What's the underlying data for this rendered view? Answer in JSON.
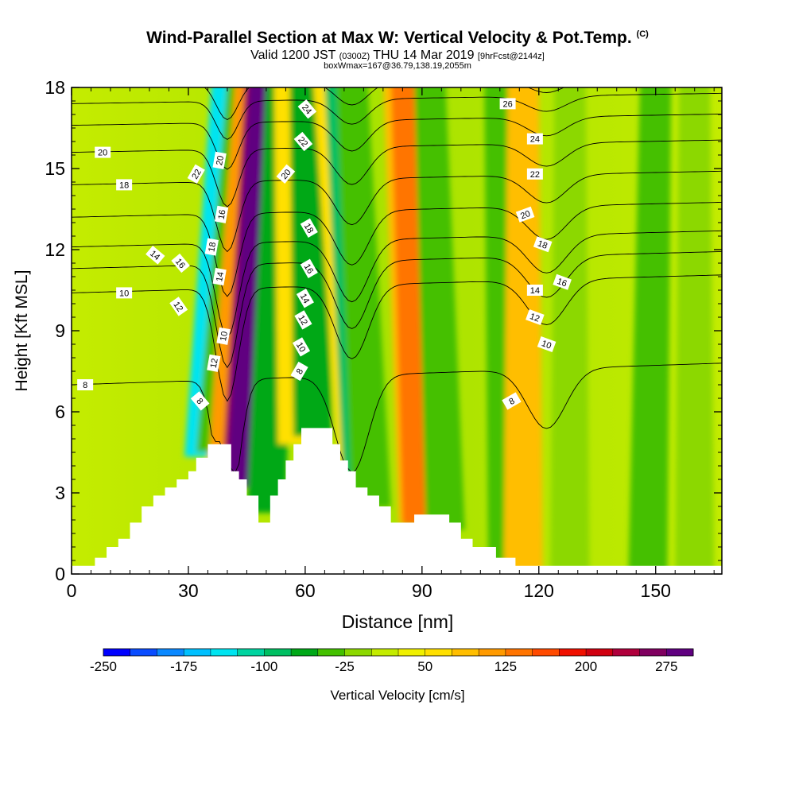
{
  "title": {
    "line1_main": "Wind-Parallel Section at Max W: Vertical Velocity & Pot.Temp.",
    "line1_copy": "(C)",
    "line2_a": "Valid 1200 JST",
    "line2_b": "(0300Z)",
    "line2_c": "THU 14 Mar 2019",
    "line2_d": "[9hrFcst@2144z]",
    "line3": "boxWmax=167@36.79,138.19,2055m"
  },
  "colors": {
    "scale": [
      "#0000ff",
      "#0a4cff",
      "#0a88ff",
      "#00c0ff",
      "#00e4f0",
      "#00d4a0",
      "#00bf62",
      "#00a818",
      "#44c000",
      "#8cd800",
      "#c4ec00",
      "#f0f000",
      "#ffe000",
      "#ffbe00",
      "#ff9a00",
      "#ff7400",
      "#ff4a00",
      "#f01000",
      "#d00010",
      "#b0003c",
      "#800060",
      "#600080"
    ],
    "terrain": "#ffffff",
    "contour": "#000000"
  },
  "chart_data": {
    "type": "heatmap",
    "xlabel": "Distance [nm]",
    "ylabel": "Height [Kft MSL]",
    "xlim": [
      0,
      167
    ],
    "ylim": [
      0,
      18
    ],
    "xticks": [
      "0",
      "30",
      "60",
      "90",
      "120",
      "150"
    ],
    "yticks": [
      "0",
      "3",
      "6",
      "9",
      "12",
      "15",
      "18"
    ],
    "colorbar": {
      "label": "Vertical Velocity [cm/s]",
      "min": -250,
      "max": 300,
      "step": 25,
      "tick_labels": [
        "-250",
        "-175",
        "-100",
        "-25",
        "50",
        "125",
        "200",
        "275"
      ]
    },
    "vertical_velocity_bands": [
      {
        "x_sfc": 34,
        "x_top": 40,
        "w": -150
      },
      {
        "x_sfc": 37,
        "x_top": 44,
        "w": -50
      },
      {
        "x_sfc": 40,
        "x_top": 46,
        "w": 100
      },
      {
        "x_sfc": 42,
        "x_top": 47,
        "w": 225
      },
      {
        "x_sfc": 43,
        "x_top": 48,
        "w": 275
      },
      {
        "x_sfc": 50,
        "x_top": 54,
        "w": -75
      },
      {
        "x_sfc": 58,
        "x_top": 56,
        "w": 50
      },
      {
        "x_sfc": 62,
        "x_top": 60,
        "w": -75
      },
      {
        "x_sfc": 74,
        "x_top": 66,
        "w": 50
      },
      {
        "x_sfc": 75,
        "x_top": 69,
        "w": -100
      },
      {
        "x_sfc": 77,
        "x_top": 72,
        "w": -50
      },
      {
        "x_sfc": 89,
        "x_top": 84,
        "w": 75
      },
      {
        "x_sfc": 90,
        "x_top": 86,
        "w": 125
      },
      {
        "x_sfc": 96,
        "x_top": 92,
        "w": -50
      },
      {
        "x_sfc": 112,
        "x_top": 110,
        "w": -50
      },
      {
        "x_sfc": 116,
        "x_top": 116,
        "w": 75
      },
      {
        "x_sfc": 128,
        "x_top": 128,
        "w": -25
      },
      {
        "x_sfc": 148,
        "x_top": 150,
        "w": -50
      },
      {
        "x_sfc": 160,
        "x_top": 160,
        "w": -25
      }
    ],
    "terrain_profile": [
      {
        "x": 0,
        "h": 0.3
      },
      {
        "x": 6,
        "h": 0.6
      },
      {
        "x": 9,
        "h": 1.0
      },
      {
        "x": 12,
        "h": 1.3
      },
      {
        "x": 15,
        "h": 1.9
      },
      {
        "x": 18,
        "h": 2.5
      },
      {
        "x": 21,
        "h": 2.9
      },
      {
        "x": 24,
        "h": 3.2
      },
      {
        "x": 27,
        "h": 3.5
      },
      {
        "x": 30,
        "h": 3.8
      },
      {
        "x": 32,
        "h": 4.3
      },
      {
        "x": 35,
        "h": 4.8
      },
      {
        "x": 38,
        "h": 4.8
      },
      {
        "x": 41,
        "h": 3.8
      },
      {
        "x": 43,
        "h": 3.5
      },
      {
        "x": 45,
        "h": 2.9
      },
      {
        "x": 48,
        "h": 1.9
      },
      {
        "x": 51,
        "h": 2.9
      },
      {
        "x": 53,
        "h": 3.5
      },
      {
        "x": 55,
        "h": 4.2
      },
      {
        "x": 57,
        "h": 4.8
      },
      {
        "x": 59,
        "h": 5.4
      },
      {
        "x": 65,
        "h": 5.4
      },
      {
        "x": 67,
        "h": 4.8
      },
      {
        "x": 69,
        "h": 4.2
      },
      {
        "x": 71,
        "h": 3.8
      },
      {
        "x": 73,
        "h": 3.2
      },
      {
        "x": 76,
        "h": 2.9
      },
      {
        "x": 79,
        "h": 2.5
      },
      {
        "x": 82,
        "h": 1.9
      },
      {
        "x": 88,
        "h": 2.2
      },
      {
        "x": 97,
        "h": 1.9
      },
      {
        "x": 100,
        "h": 1.3
      },
      {
        "x": 103,
        "h": 1.0
      },
      {
        "x": 109,
        "h": 0.6
      },
      {
        "x": 114,
        "h": 0.3
      },
      {
        "x": 167,
        "h": 0.3
      }
    ],
    "theta_contours": [
      {
        "level": 8,
        "base": 7.0
      },
      {
        "level": 10,
        "base": 10.4
      },
      {
        "level": 12,
        "base": 11.3
      },
      {
        "level": 14,
        "base": 12.1
      },
      {
        "level": 16,
        "base": 13.2
      },
      {
        "level": 18,
        "base": 14.4
      },
      {
        "level": 20,
        "base": 15.6
      },
      {
        "level": 22,
        "base": 16.6
      },
      {
        "level": 24,
        "base": 17.4
      },
      {
        "level": 26,
        "base": 18.1
      }
    ],
    "contour_labels": [
      {
        "text": "20",
        "x": 8,
        "y": 15.6,
        "rot": 0
      },
      {
        "text": "18",
        "x": 13.5,
        "y": 14.4,
        "rot": 0
      },
      {
        "text": "14",
        "x": 21.5,
        "y": 11.8,
        "rot": 40
      },
      {
        "text": "10",
        "x": 13.5,
        "y": 10.4,
        "rot": 0
      },
      {
        "text": "16",
        "x": 28,
        "y": 11.5,
        "rot": 50
      },
      {
        "text": "12",
        "x": 27.5,
        "y": 9.9,
        "rot": 55
      },
      {
        "text": "8",
        "x": 3.5,
        "y": 7.0,
        "rot": 0
      },
      {
        "text": "22",
        "x": 32,
        "y": 14.8,
        "rot": -60
      },
      {
        "text": "20",
        "x": 38,
        "y": 15.3,
        "rot": -80
      },
      {
        "text": "16",
        "x": 38.5,
        "y": 13.3,
        "rot": -80
      },
      {
        "text": "18",
        "x": 36,
        "y": 12.1,
        "rot": -80
      },
      {
        "text": "14",
        "x": 38,
        "y": 11.0,
        "rot": -80
      },
      {
        "text": "10",
        "x": 39,
        "y": 8.8,
        "rot": -80
      },
      {
        "text": "12",
        "x": 36.5,
        "y": 7.8,
        "rot": -80
      },
      {
        "text": "8",
        "x": 33,
        "y": 6.4,
        "rot": 50
      },
      {
        "text": "24",
        "x": 60.5,
        "y": 17.2,
        "rot": 50
      },
      {
        "text": "22",
        "x": 59.5,
        "y": 16.0,
        "rot": 50
      },
      {
        "text": "20",
        "x": 55,
        "y": 14.8,
        "rot": -50
      },
      {
        "text": "18",
        "x": 61,
        "y": 12.8,
        "rot": 60
      },
      {
        "text": "16",
        "x": 61,
        "y": 11.3,
        "rot": 60
      },
      {
        "text": "14",
        "x": 60,
        "y": 10.2,
        "rot": 60
      },
      {
        "text": "12",
        "x": 59.5,
        "y": 9.4,
        "rot": 60
      },
      {
        "text": "10",
        "x": 59,
        "y": 8.4,
        "rot": 60
      },
      {
        "text": "8",
        "x": 58.5,
        "y": 7.5,
        "rot": -60
      },
      {
        "text": "26",
        "x": 112,
        "y": 17.4,
        "rot": 0
      },
      {
        "text": "24",
        "x": 119,
        "y": 16.1,
        "rot": 0
      },
      {
        "text": "22",
        "x": 119,
        "y": 14.8,
        "rot": 0
      },
      {
        "text": "20",
        "x": 116.5,
        "y": 13.3,
        "rot": -20
      },
      {
        "text": "18",
        "x": 121,
        "y": 12.2,
        "rot": 20
      },
      {
        "text": "16",
        "x": 126,
        "y": 10.8,
        "rot": 20
      },
      {
        "text": "14",
        "x": 119,
        "y": 10.5,
        "rot": 0
      },
      {
        "text": "12",
        "x": 119,
        "y": 9.5,
        "rot": 20
      },
      {
        "text": "10",
        "x": 122,
        "y": 8.5,
        "rot": 20
      },
      {
        "text": "8",
        "x": 113,
        "y": 6.4,
        "rot": -30
      }
    ]
  }
}
